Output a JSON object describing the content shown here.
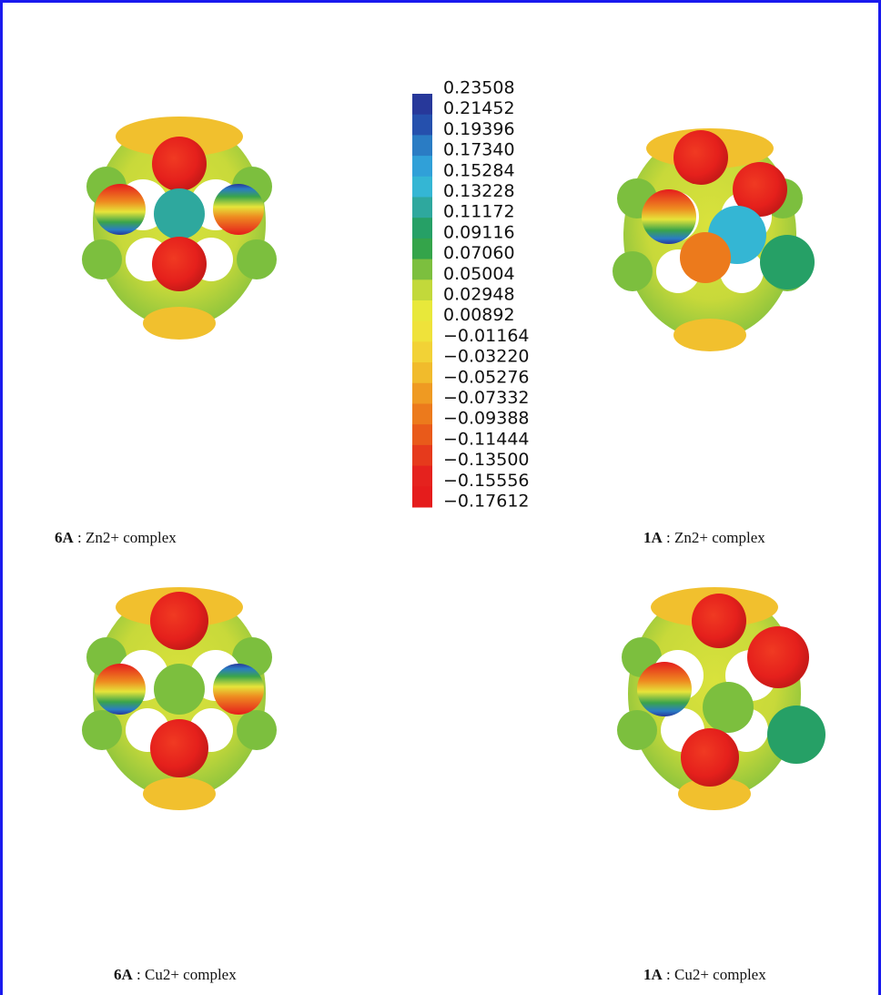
{
  "legend": {
    "labels": [
      "0.23508",
      "0.21452",
      "0.19396",
      "0.17340",
      "0.15284",
      "0.13228",
      "0.11172",
      "0.09116",
      "0.07060",
      "0.05004",
      "0.02948",
      "0.00892",
      "−0.01164",
      "−0.03220",
      "−0.05276",
      "−0.07332",
      "−0.09388",
      "−0.11444",
      "−0.13500",
      "−0.15556",
      "−0.17612"
    ],
    "colors": [
      "#27389a",
      "#2550ad",
      "#2a7cc4",
      "#30a0d8",
      "#34b6d4",
      "#2ea89e",
      "#26a066",
      "#34a44a",
      "#7cbf3e",
      "#c2d93a",
      "#e8e83a",
      "#efe23a",
      "#f2d236",
      "#f1bb2c",
      "#ef9a22",
      "#ec7a1c",
      "#e95a1a",
      "#e63a1c",
      "#e5221e",
      "#e51c1c"
    ]
  },
  "captions": [
    {
      "label": "6A",
      "text": " : Zn2+ complex"
    },
    {
      "label": "1A",
      "text": " : Zn2+ complex"
    },
    {
      "label": "6A",
      "text": " : Cu2+ complex"
    },
    {
      "label": "1A",
      "text": " : Cu2+ complex"
    }
  ]
}
